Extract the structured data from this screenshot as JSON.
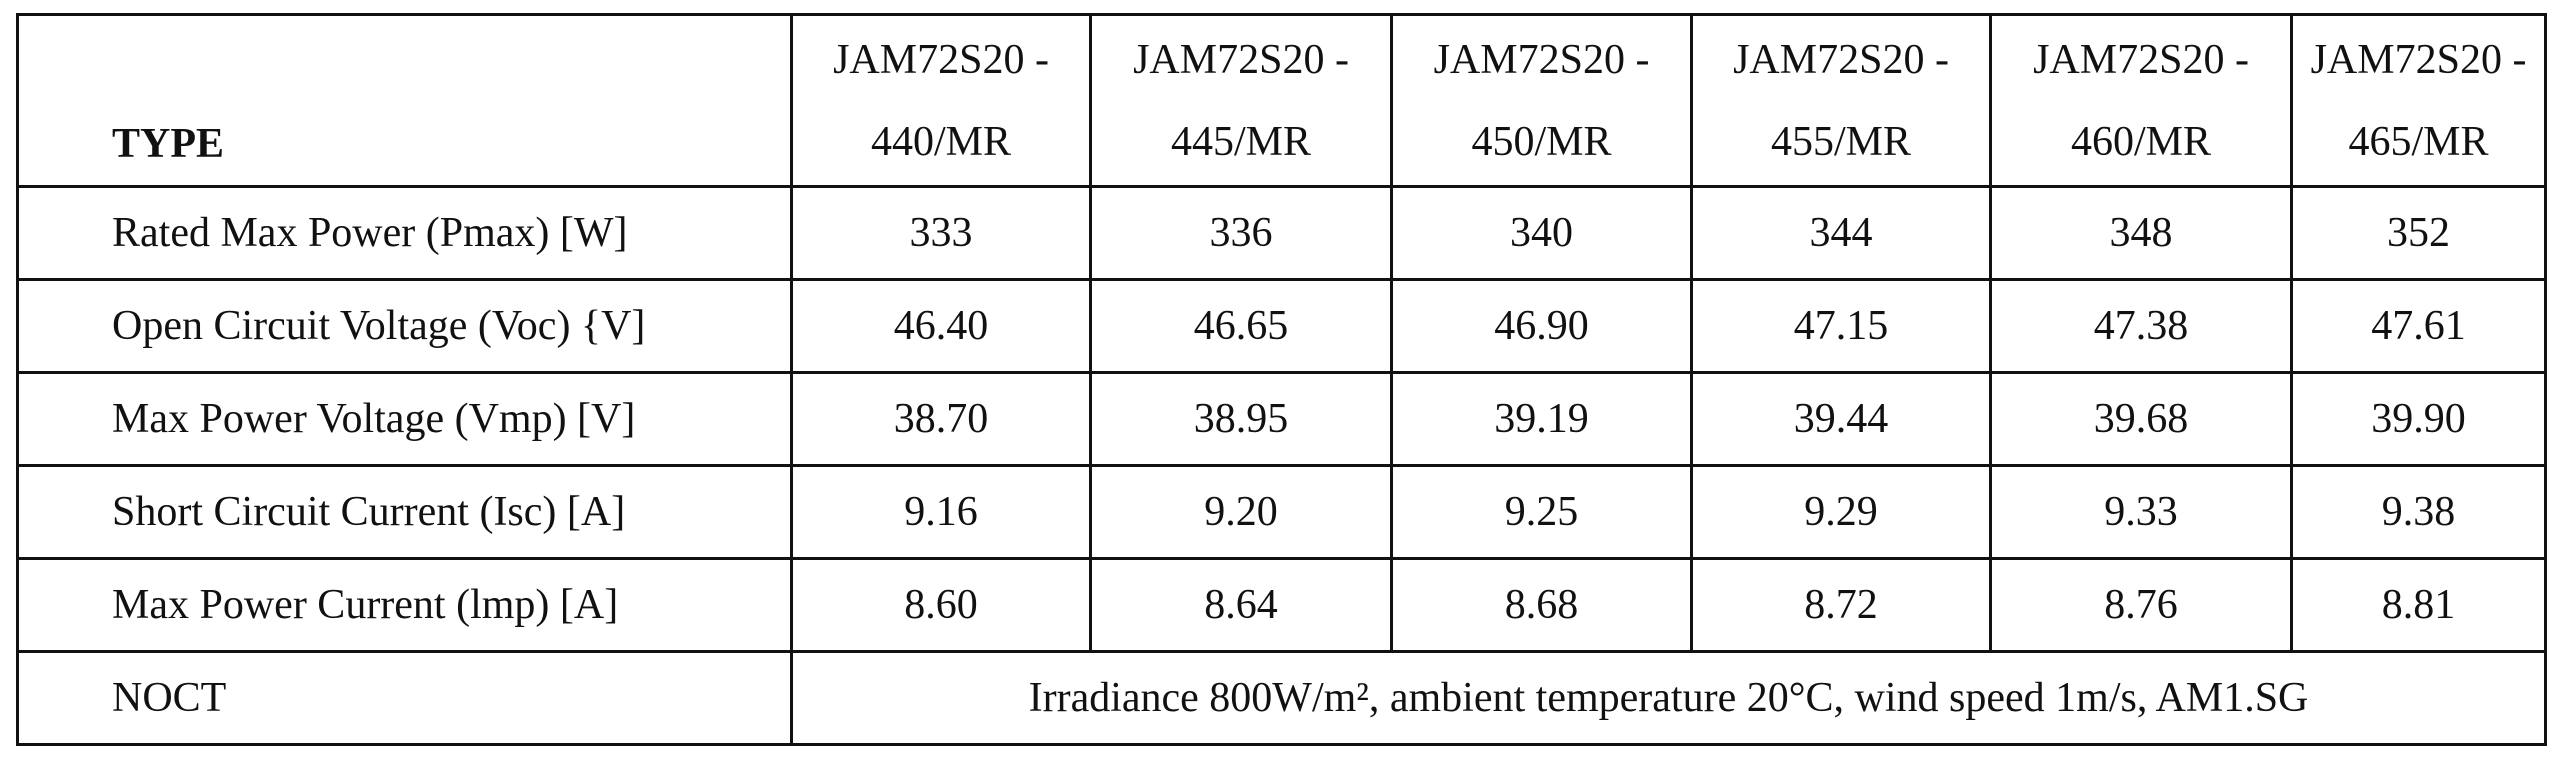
{
  "table": {
    "header": [
      "TYPE",
      "JAM72S20 - 440/MR",
      "JAM72S20 - 445/MR",
      "JAM72S20 - 450/MR",
      "JAM72S20 - 455/MR",
      "JAM72S20 - 460/MR",
      "JAM72S20 - 465/MR"
    ],
    "rows": [
      [
        "Rated Max Power (Pmax) [W]",
        "333",
        "336",
        "340",
        "344",
        "348",
        "352"
      ],
      [
        "Open Circuit Voltage (Voc) {V]",
        "46.40",
        "46.65",
        "46.90",
        "47.15",
        "47.38",
        "47.61"
      ],
      [
        "Max Power Voltage (Vmp) [V]",
        "38.70",
        "38.95",
        "39.19",
        "39.44",
        "39.68",
        "39.90"
      ],
      [
        "Short Circuit Current (Isc) [A]",
        "9.16",
        "9.20",
        "9.25",
        "9.29",
        "9.33",
        "9.38"
      ],
      [
        "Max Power Current (lmp) [A]",
        "8.60",
        "8.64",
        "8.68",
        "8.72",
        "8.76",
        "8.81"
      ]
    ],
    "noct": [
      "NOCT",
      "Irradiance 800W/m², ambient temperature 20°C, wind speed 1m/s, AM1.SG"
    ]
  }
}
